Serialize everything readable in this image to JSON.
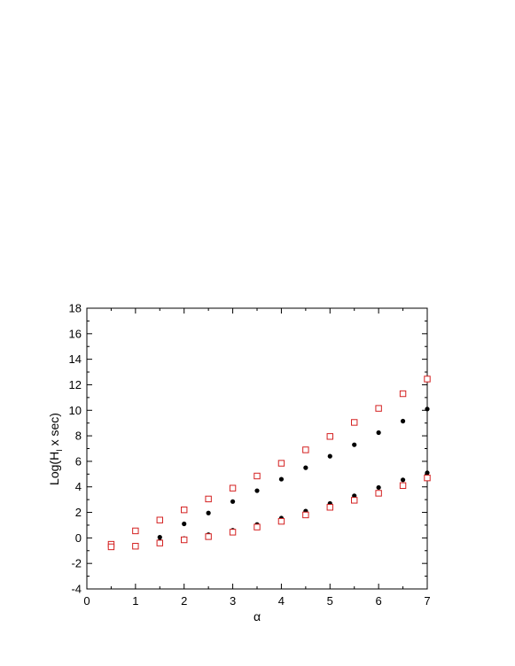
{
  "chart_data": {
    "type": "scatter",
    "title": "",
    "xlabel": "α",
    "ylabel_main": "Log(H",
    "ylabel_sub": "I",
    "ylabel_rest": " x sec)",
    "xlim": [
      0,
      7
    ],
    "ylim": [
      -4,
      18
    ],
    "xticks": [
      0,
      1,
      2,
      3,
      4,
      5,
      6,
      7
    ],
    "yticks": [
      -4,
      -2,
      0,
      2,
      4,
      6,
      8,
      10,
      12,
      14,
      16,
      18
    ],
    "grid": false,
    "legend": "none",
    "series": [
      {
        "marker": "filled-circle",
        "color": "#000000",
        "points": [
          {
            "x": 1.5,
            "y": 0.05
          },
          {
            "x": 2.0,
            "y": 1.1
          },
          {
            "x": 2.5,
            "y": 1.95
          },
          {
            "x": 3.0,
            "y": 2.85
          },
          {
            "x": 3.5,
            "y": 3.7
          },
          {
            "x": 4.0,
            "y": 4.6
          },
          {
            "x": 4.5,
            "y": 5.5
          },
          {
            "x": 5.0,
            "y": 6.4
          },
          {
            "x": 5.5,
            "y": 7.3
          },
          {
            "x": 6.0,
            "y": 8.25
          },
          {
            "x": 6.5,
            "y": 9.15
          },
          {
            "x": 7.0,
            "y": 10.1
          }
        ]
      },
      {
        "marker": "filled-circle",
        "color": "#000000",
        "points": [
          {
            "x": 1.5,
            "y": -0.25
          },
          {
            "x": 2.0,
            "y": -0.05
          },
          {
            "x": 2.5,
            "y": 0.25
          },
          {
            "x": 3.0,
            "y": 0.6
          },
          {
            "x": 3.5,
            "y": 1.05
          },
          {
            "x": 4.0,
            "y": 1.55
          },
          {
            "x": 4.5,
            "y": 2.1
          },
          {
            "x": 5.0,
            "y": 2.7
          },
          {
            "x": 5.5,
            "y": 3.3
          },
          {
            "x": 6.0,
            "y": 3.95
          },
          {
            "x": 6.5,
            "y": 4.55
          },
          {
            "x": 7.0,
            "y": 5.1
          }
        ]
      },
      {
        "marker": "open-square",
        "color": "#d42020",
        "points": [
          {
            "x": 0.5,
            "y": -0.5
          },
          {
            "x": 1.0,
            "y": 0.55
          },
          {
            "x": 1.5,
            "y": 1.4
          },
          {
            "x": 2.0,
            "y": 2.2
          },
          {
            "x": 2.5,
            "y": 3.05
          },
          {
            "x": 3.0,
            "y": 3.9
          },
          {
            "x": 3.5,
            "y": 4.85
          },
          {
            "x": 4.0,
            "y": 5.85
          },
          {
            "x": 4.5,
            "y": 6.9
          },
          {
            "x": 5.0,
            "y": 7.95
          },
          {
            "x": 5.5,
            "y": 9.05
          },
          {
            "x": 6.0,
            "y": 10.15
          },
          {
            "x": 6.5,
            "y": 11.3
          },
          {
            "x": 7.0,
            "y": 12.45
          }
        ]
      },
      {
        "marker": "open-square",
        "color": "#d42020",
        "points": [
          {
            "x": 0.5,
            "y": -0.7
          },
          {
            "x": 1.0,
            "y": -0.65
          },
          {
            "x": 1.5,
            "y": -0.4
          },
          {
            "x": 2.0,
            "y": -0.15
          },
          {
            "x": 2.5,
            "y": 0.1
          },
          {
            "x": 3.0,
            "y": 0.45
          },
          {
            "x": 3.5,
            "y": 0.85
          },
          {
            "x": 4.0,
            "y": 1.3
          },
          {
            "x": 4.5,
            "y": 1.8
          },
          {
            "x": 5.0,
            "y": 2.4
          },
          {
            "x": 5.5,
            "y": 2.95
          },
          {
            "x": 6.0,
            "y": 3.5
          },
          {
            "x": 6.5,
            "y": 4.1
          },
          {
            "x": 7.0,
            "y": 4.7
          }
        ]
      }
    ]
  }
}
